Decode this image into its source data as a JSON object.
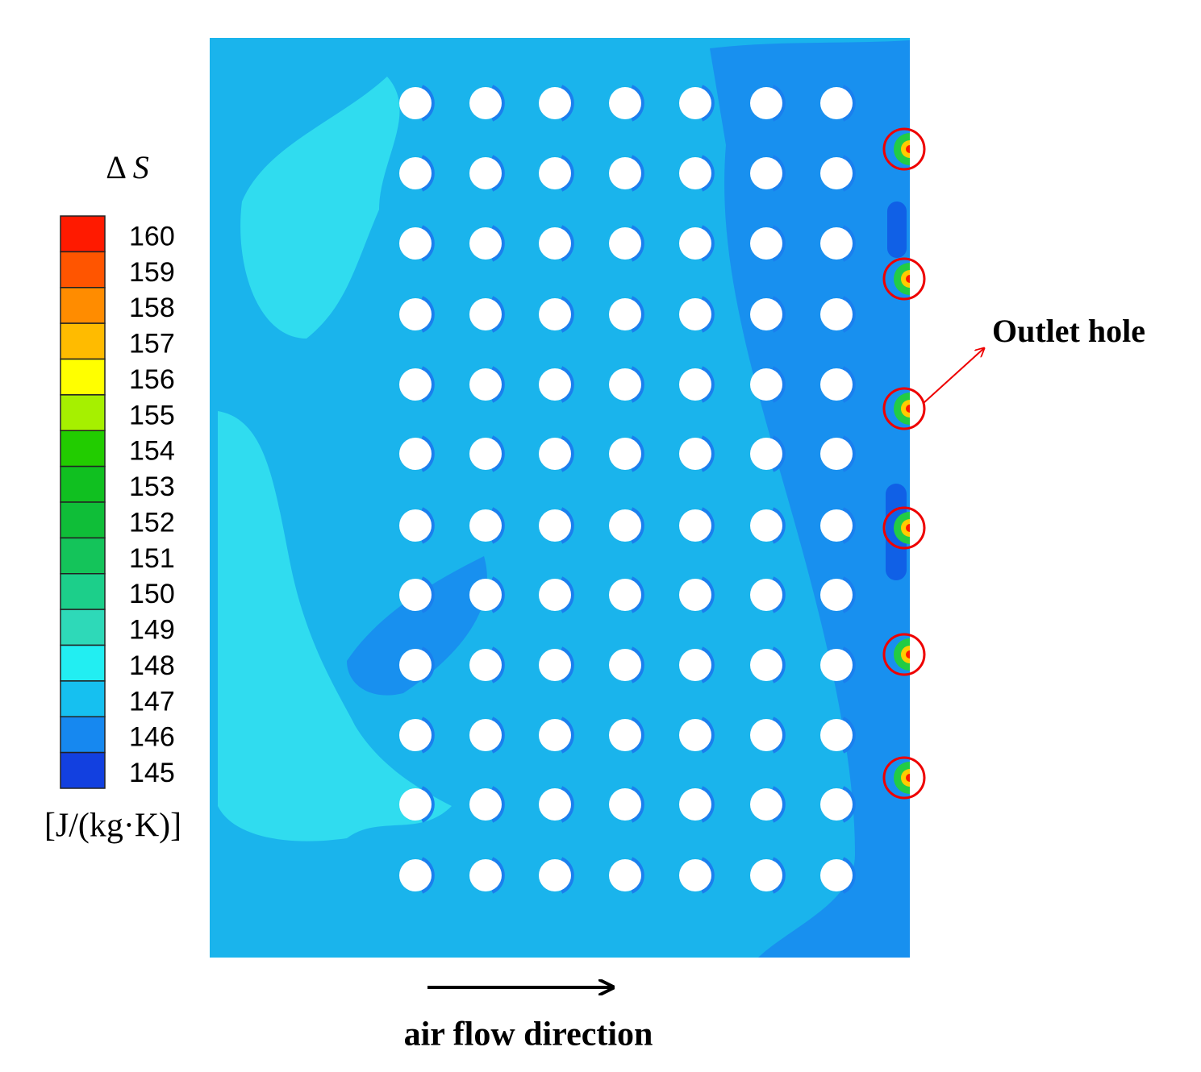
{
  "legend": {
    "symbol": "Δ",
    "variable": "S",
    "levels": [
      160,
      159,
      158,
      157,
      156,
      155,
      154,
      153,
      152,
      151,
      150,
      149,
      148,
      147,
      146,
      145
    ],
    "colors": [
      "#ff1a00",
      "#ff5500",
      "#ff8c00",
      "#ffbb00",
      "#ffff00",
      "#a6f000",
      "#22cc00",
      "#10c020",
      "#0fbe38",
      "#14c45a",
      "#1ccf8a",
      "#2ed9b8",
      "#22eef2",
      "#16c0f0",
      "#1688f0",
      "#1240e0"
    ],
    "unit": "[J/(kg·K)]"
  },
  "annotations": {
    "outlet": "Outlet hole",
    "flow": "air flow direction"
  }
}
